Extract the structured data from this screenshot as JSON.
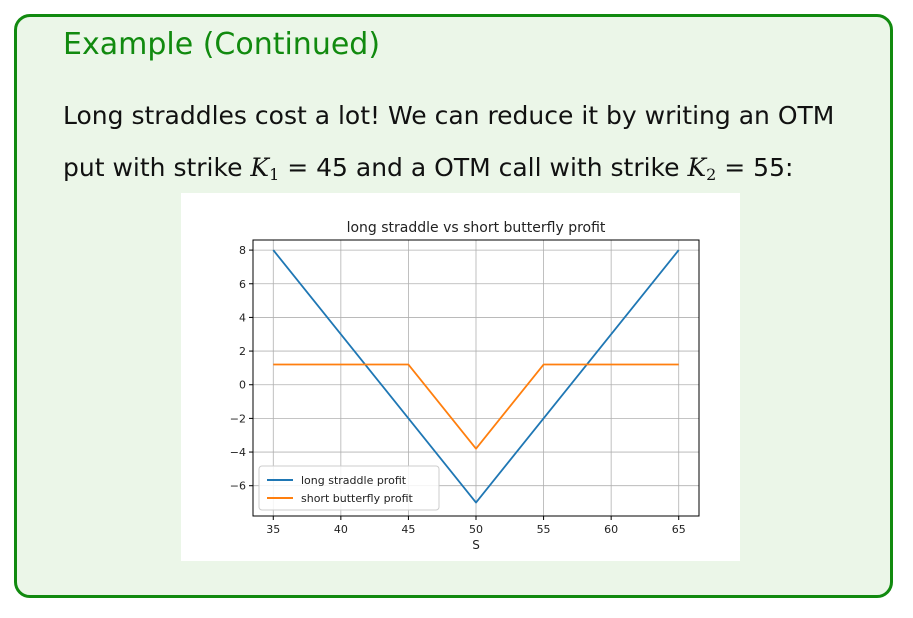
{
  "block": {
    "title": "Example (Continued)",
    "line1": "Long straddles cost a lot! We can reduce it by writing an OTM",
    "line2_a": "put with strike ",
    "k1_symbol": "K",
    "k1_sub": "1",
    "k1_eq": " = 45 and a OTM call with strike ",
    "k2_symbol": "K",
    "k2_sub": "2",
    "k2_eq": " = 55:"
  },
  "colors": {
    "frame": "#118a0f",
    "block_bg": "#ebf6e8",
    "series_1": "#1f77b4",
    "series_2": "#ff7f0e"
  },
  "chart_data": {
    "type": "line",
    "title": "long straddle vs short butterfly profit",
    "xlabel": "S",
    "ylabel": "",
    "xlim": [
      33.5,
      66.5
    ],
    "ylim": [
      -7.8,
      8.6
    ],
    "xticks": [
      35,
      40,
      45,
      50,
      55,
      60,
      65
    ],
    "yticks": [
      -6,
      -4,
      -2,
      0,
      2,
      4,
      6,
      8
    ],
    "grid": true,
    "legend_position": "lower-left",
    "series": [
      {
        "name": "long straddle profit",
        "color": "#1f77b4",
        "x": [
          35,
          50,
          65
        ],
        "y": [
          8,
          -7,
          8
        ]
      },
      {
        "name": "short butterfly profit",
        "color": "#ff7f0e",
        "x": [
          35,
          45,
          50,
          55,
          65
        ],
        "y": [
          1.2,
          1.2,
          -3.8,
          1.2,
          1.2
        ]
      }
    ]
  }
}
